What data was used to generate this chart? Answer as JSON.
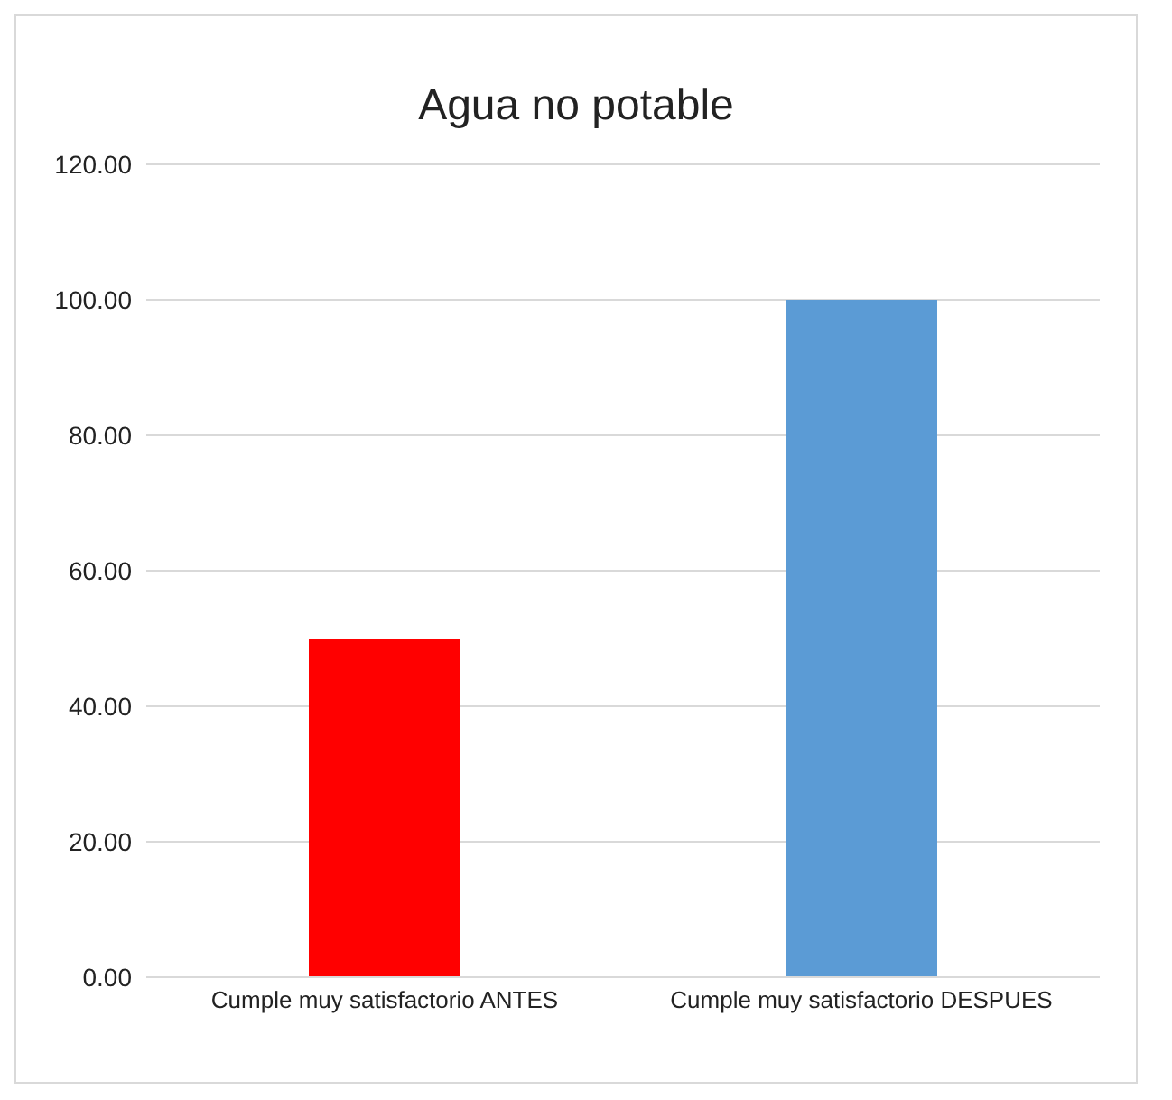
{
  "chart_data": {
    "type": "bar",
    "title": "Agua no potable",
    "categories": [
      "Cumple muy satisfactorio ANTES",
      "Cumple muy satisfactorio DESPUES"
    ],
    "values": [
      50,
      100
    ],
    "colors": [
      "#ff0000",
      "#5b9bd5"
    ],
    "ylim": [
      0,
      120
    ],
    "yticks": [
      {
        "value": 0,
        "label": "0.00"
      },
      {
        "value": 20,
        "label": "20.00"
      },
      {
        "value": 40,
        "label": "40.00"
      },
      {
        "value": 60,
        "label": "60.00"
      },
      {
        "value": 80,
        "label": "80.00"
      },
      {
        "value": 100,
        "label": "100.00"
      },
      {
        "value": 120,
        "label": "120.00"
      }
    ],
    "grid": "y",
    "legend": false
  }
}
